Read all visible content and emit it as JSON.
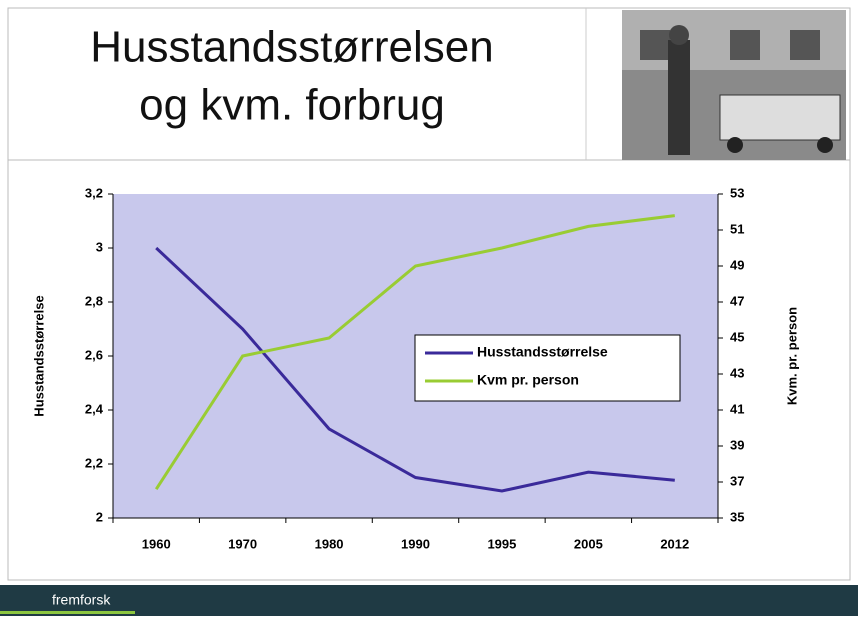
{
  "slide": {
    "title_lines": [
      "Husstandsstørrelsen",
      "og kvm. forbrug"
    ],
    "footer": "fremforsk"
  },
  "chart_data": {
    "type": "line",
    "categories": [
      "1960",
      "1970",
      "1980",
      "1990",
      "1995",
      "2005",
      "2012"
    ],
    "ylabel": "Husstandsstørrelse",
    "y2label": "Kvm. pr. person",
    "ylim": [
      2,
      3.2
    ],
    "yticks": [
      2,
      {
        "value": 2.2,
        "label": "2,2"
      },
      {
        "value": 2.4,
        "label": "2,4"
      },
      {
        "value": 2.6,
        "label": "2,6"
      },
      {
        "value": 2.8,
        "label": "2,8"
      },
      3,
      {
        "value": 3.2,
        "label": "3,2"
      }
    ],
    "y2lim": [
      35,
      53
    ],
    "y2ticks": [
      35,
      37,
      39,
      41,
      43,
      45,
      47,
      49,
      51,
      53
    ],
    "legend": "center right",
    "plot_background": "#c8c8ec",
    "series": [
      {
        "name": "Husstandsstørrelse",
        "color": "#3a2a9a",
        "values": [
          3.0,
          2.7,
          2.33,
          2.15,
          2.1,
          2.17,
          2.14
        ]
      },
      {
        "name": "Kvm pr. person",
        "color": "#99cc33",
        "axis": "y2",
        "values": [
          36.6,
          44,
          45,
          49,
          50,
          51.2,
          51.8
        ]
      }
    ]
  }
}
